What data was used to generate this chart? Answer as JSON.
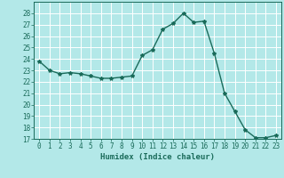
{
  "x": [
    0,
    1,
    2,
    3,
    4,
    5,
    6,
    7,
    8,
    9,
    10,
    11,
    12,
    13,
    14,
    15,
    16,
    17,
    18,
    19,
    20,
    21,
    22,
    23
  ],
  "y": [
    23.8,
    23.0,
    22.7,
    22.8,
    22.7,
    22.5,
    22.3,
    22.3,
    22.4,
    22.5,
    24.3,
    24.8,
    26.6,
    27.1,
    28.0,
    27.2,
    27.3,
    24.5,
    21.0,
    19.4,
    17.8,
    17.1,
    17.1,
    17.3
  ],
  "line_color": "#1a6b5a",
  "marker": "*",
  "marker_size": 3,
  "bg_color": "#b3e8e8",
  "grid_major_color": "#ffffff",
  "grid_minor_color": "#e8b3b3",
  "xlabel": "Humidex (Indice chaleur)",
  "ylim": [
    17,
    29
  ],
  "xlim": [
    -0.5,
    23.5
  ],
  "yticks": [
    17,
    18,
    19,
    20,
    21,
    22,
    23,
    24,
    25,
    26,
    27,
    28
  ],
  "xticks": [
    0,
    1,
    2,
    3,
    4,
    5,
    6,
    7,
    8,
    9,
    10,
    11,
    12,
    13,
    14,
    15,
    16,
    17,
    18,
    19,
    20,
    21,
    22,
    23
  ],
  "label_fontsize": 6.5,
  "tick_fontsize": 5.5
}
